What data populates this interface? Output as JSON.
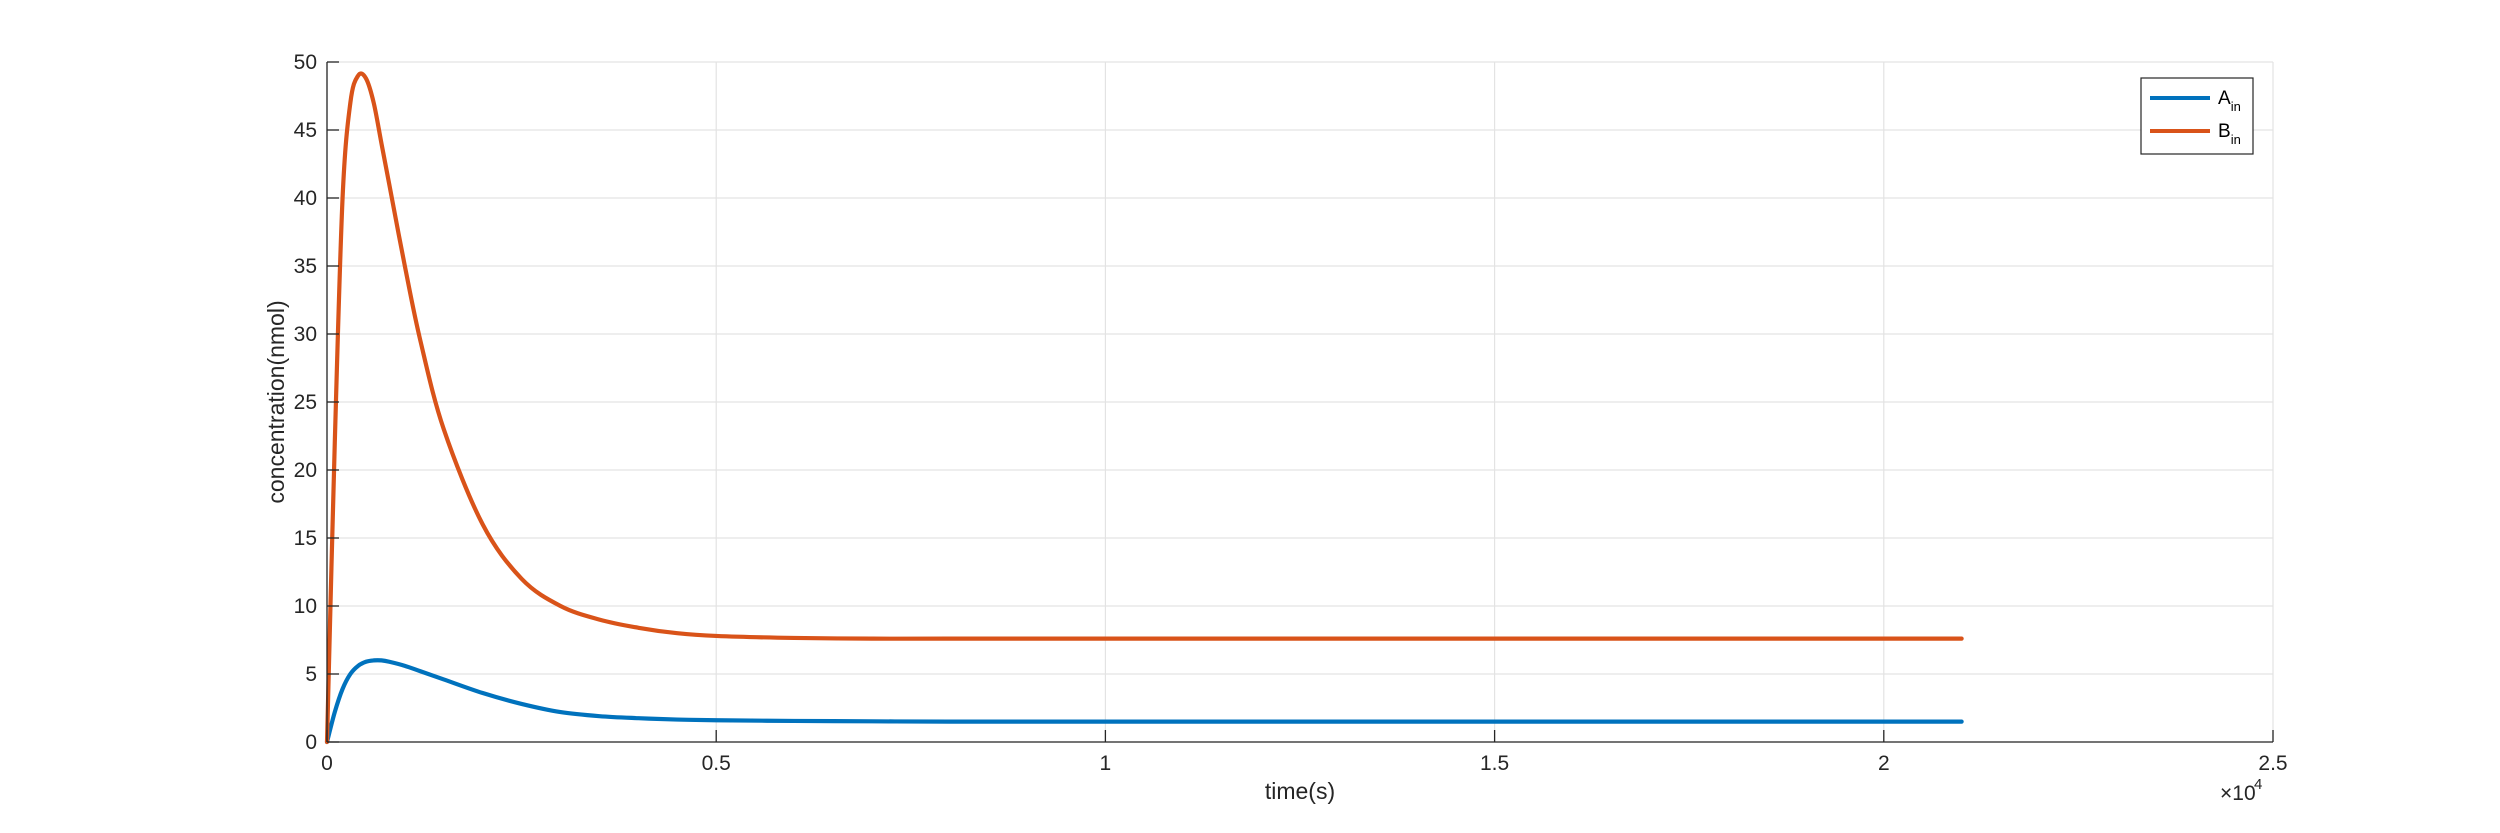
{
  "chart_data": {
    "type": "line",
    "title": "",
    "xlabel": "time(s)",
    "ylabel": "concentration(nmol)",
    "x_exponent_label": "×10",
    "x_exponent_power": "4",
    "x_tick_labels": [
      "0",
      "0.5",
      "1",
      "1.5",
      "2",
      "2.5"
    ],
    "y_tick_labels": [
      "0",
      "5",
      "10",
      "15",
      "20",
      "25",
      "30",
      "35",
      "40",
      "45",
      "50"
    ],
    "xlim": [
      0,
      25000
    ],
    "ylim": [
      0,
      50
    ],
    "grid": true,
    "legend_position": "top-right",
    "x": [
      0,
      100,
      200,
      300,
      400,
      500,
      600,
      700,
      800,
      1000,
      1200,
      1500,
      2000,
      2500,
      3000,
      3500,
      4000,
      4500,
      5000,
      6000,
      7000,
      8000,
      10000,
      12000,
      14000,
      16000,
      18000,
      21000
    ],
    "series": [
      {
        "name": "A",
        "name_sub": "in",
        "color": "#0072BD",
        "values": [
          0,
          2.2,
          3.9,
          5.0,
          5.6,
          5.9,
          6.0,
          6.0,
          5.9,
          5.6,
          5.2,
          4.6,
          3.6,
          2.8,
          2.2,
          1.9,
          1.75,
          1.65,
          1.6,
          1.55,
          1.52,
          1.5,
          1.5,
          1.5,
          1.5,
          1.5,
          1.5,
          1.5
        ]
      },
      {
        "name": "B",
        "name_sub": "in",
        "color": "#D95319",
        "values": [
          0,
          22,
          40,
          47,
          49,
          48.8,
          47,
          44,
          41,
          35,
          29.5,
          23,
          16,
          12,
          10,
          9,
          8.4,
          8.0,
          7.8,
          7.65,
          7.6,
          7.6,
          7.6,
          7.6,
          7.6,
          7.6,
          7.6,
          7.6
        ]
      }
    ]
  }
}
